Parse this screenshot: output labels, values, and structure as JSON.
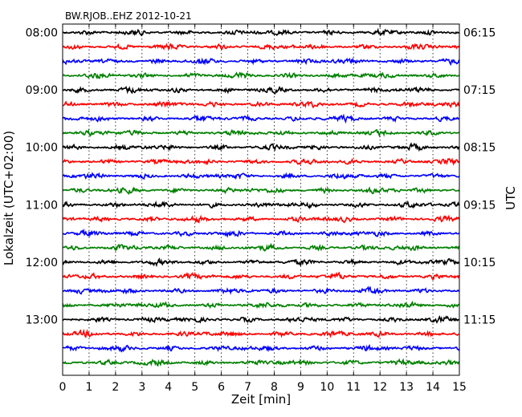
{
  "chart_data": {
    "type": "line",
    "title": "BW.RJOB..EHZ 2012-10-21",
    "xlabel": "Zeit  [min]",
    "ylabel_left": "Lokalzeit (UTC+02:00)",
    "ylabel_right": "UTC",
    "xlim": [
      0,
      15
    ],
    "x_ticks": [
      "0",
      "1",
      "2",
      "3",
      "4",
      "5",
      "6",
      "7",
      "8",
      "9",
      "10",
      "11",
      "12",
      "13",
      "14",
      "15"
    ],
    "left_ticks": [
      "08:00",
      "09:00",
      "10:00",
      "11:00",
      "12:00",
      "13:00"
    ],
    "right_ticks": [
      "06:15",
      "07:15",
      "08:15",
      "09:15",
      "10:15",
      "11:15"
    ],
    "trace_count": 24,
    "trace_interval_minutes": 15,
    "first_trace_local": "08:00",
    "trace_colors": [
      "#000000",
      "#ff0000",
      "#0000ff",
      "#008000"
    ],
    "grid": {
      "x_dotted": true
    }
  }
}
